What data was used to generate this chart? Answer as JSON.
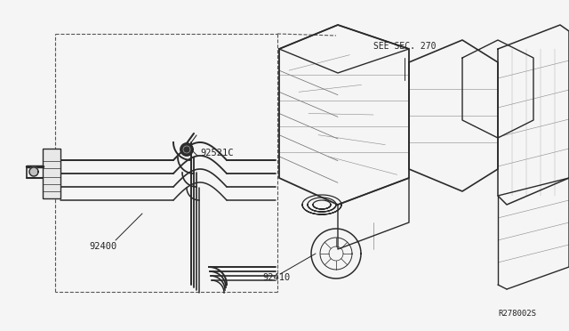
{
  "bg_color": "#f5f5f5",
  "line_color": "#2a2a2a",
  "dash_color": "#555555",
  "text_color": "#222222",
  "fig_width": 6.4,
  "fig_height": 3.72,
  "dpi": 100,
  "labels": {
    "see_sec": "SEE SEC. 270",
    "part_92521c": "92521C",
    "part_92400": "92400",
    "part_92410": "92410",
    "ref_code": "R278002S"
  }
}
